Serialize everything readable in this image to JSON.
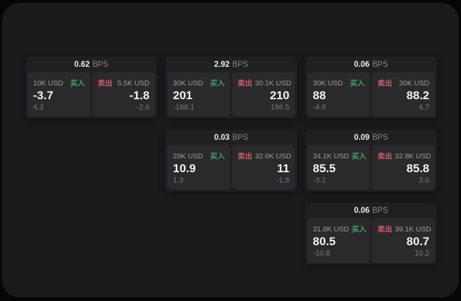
{
  "colors": {
    "backdrop": "#060606",
    "panel_bg": "#1a1a1b",
    "card_bg": "#202022",
    "tile_bg": "#2a2a2c",
    "buy_green": "#3fa36c",
    "sell_red": "#d25a6a"
  },
  "cards": [
    {
      "row": 1,
      "col": 1,
      "bps_value": "0.62",
      "bps_unit": "BPS",
      "buy": {
        "amount": "10K USD",
        "label": "买入",
        "value": "-3.7",
        "sub": "4.3"
      },
      "sell": {
        "label": "卖出",
        "amount": "5.5K USD",
        "value": "-1.8",
        "sub": "-2.6"
      }
    },
    {
      "row": 1,
      "col": 2,
      "bps_value": "2.92",
      "bps_unit": "BPS",
      "buy": {
        "amount": "30K USD",
        "label": "买入",
        "value": "201",
        "sub": "-188.1"
      },
      "sell": {
        "label": "卖出",
        "amount": "30.1K USD",
        "value": "210",
        "sub": "196.5"
      }
    },
    {
      "row": 1,
      "col": 3,
      "bps_value": "0.06",
      "bps_unit": "BPS",
      "buy": {
        "amount": "30K USD",
        "label": "买入",
        "value": "88",
        "sub": "-4.9"
      },
      "sell": {
        "label": "卖出",
        "amount": "30K USD",
        "value": "88.2",
        "sub": "4.7"
      }
    },
    {
      "row": 2,
      "col": 2,
      "bps_value": "0.03",
      "bps_unit": "BPS",
      "buy": {
        "amount": "28K USD",
        "label": "买入",
        "value": "10.9",
        "sub": "1.3"
      },
      "sell": {
        "label": "卖出",
        "amount": "32.6K USD",
        "value": "11",
        "sub": "-1.8"
      }
    },
    {
      "row": 2,
      "col": 3,
      "bps_value": "0.09",
      "bps_unit": "BPS",
      "buy": {
        "amount": "34.1K USD",
        "label": "买入",
        "value": "85.5",
        "sub": "-3.1"
      },
      "sell": {
        "label": "卖出",
        "amount": "32.8K USD",
        "value": "85.8",
        "sub": "3.0"
      }
    },
    {
      "row": 3,
      "col": 3,
      "bps_value": "0.06",
      "bps_unit": "BPS",
      "buy": {
        "amount": "31.8K USD",
        "label": "买入",
        "value": "80.5",
        "sub": "-10.8"
      },
      "sell": {
        "label": "卖出",
        "amount": "39.1K USD",
        "value": "80.7",
        "sub": "10.2"
      }
    }
  ]
}
